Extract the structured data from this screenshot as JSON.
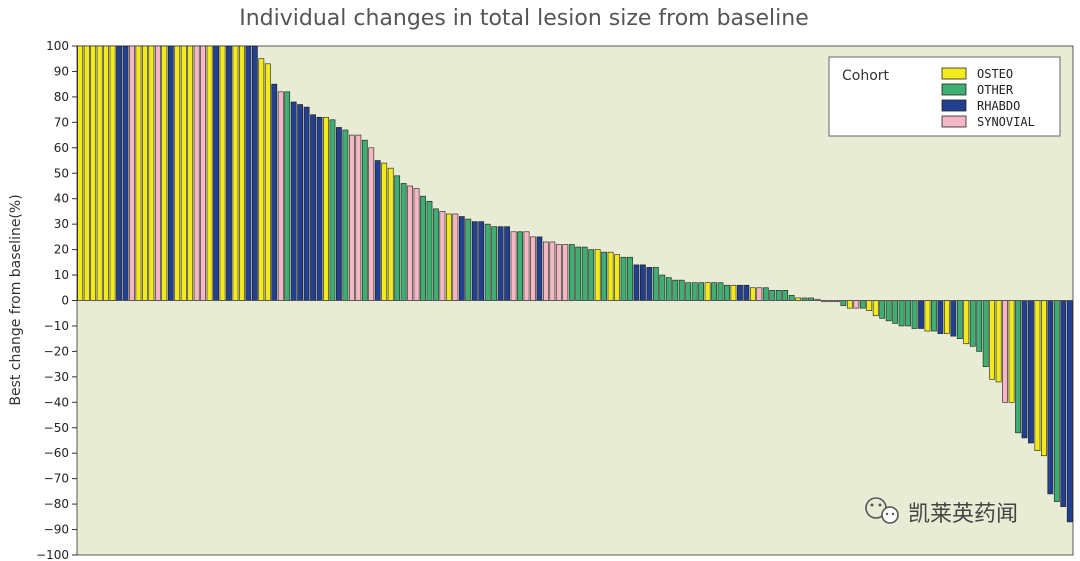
{
  "chart_data": {
    "type": "bar",
    "title": "Individual changes in total lesion size from baseline",
    "ylabel": "Best change from baseline(%)",
    "ylim": [
      -100,
      100
    ],
    "y_ticks": [
      100,
      90,
      80,
      70,
      60,
      50,
      40,
      30,
      20,
      10,
      0,
      -10,
      -20,
      -30,
      -40,
      -50,
      -60,
      -70,
      -80,
      -90,
      -100
    ],
    "legend": {
      "title": "Cohort",
      "position": "top-right",
      "entries": [
        {
          "name": "OSTEO",
          "color": "#f2ea1c"
        },
        {
          "name": "OTHER",
          "color": "#3fae72"
        },
        {
          "name": "RHABDO",
          "color": "#22408f"
        },
        {
          "name": "SYNOVIAL",
          "color": "#f5b7c6"
        }
      ]
    },
    "colors": {
      "plot_background": "#e9ecd4",
      "OSTEO": "#f2ea1c",
      "OTHER": "#3fae72",
      "RHABDO": "#22408f",
      "SYNOVIAL": "#f5b7c6"
    },
    "bars": [
      {
        "cohort": "OSTEO",
        "value": 100
      },
      {
        "cohort": "OSTEO",
        "value": 100
      },
      {
        "cohort": "OSTEO",
        "value": 100
      },
      {
        "cohort": "OSTEO",
        "value": 100
      },
      {
        "cohort": "OSTEO",
        "value": 100
      },
      {
        "cohort": "OSTEO",
        "value": 100
      },
      {
        "cohort": "RHABDO",
        "value": 100
      },
      {
        "cohort": "RHABDO",
        "value": 100
      },
      {
        "cohort": "SYNOVIAL",
        "value": 100
      },
      {
        "cohort": "OSTEO",
        "value": 100
      },
      {
        "cohort": "OSTEO",
        "value": 100
      },
      {
        "cohort": "OSTEO",
        "value": 100
      },
      {
        "cohort": "SYNOVIAL",
        "value": 100
      },
      {
        "cohort": "OSTEO",
        "value": 100
      },
      {
        "cohort": "RHABDO",
        "value": 100
      },
      {
        "cohort": "OSTEO",
        "value": 100
      },
      {
        "cohort": "OSTEO",
        "value": 100
      },
      {
        "cohort": "OSTEO",
        "value": 100
      },
      {
        "cohort": "SYNOVIAL",
        "value": 100
      },
      {
        "cohort": "SYNOVIAL",
        "value": 100
      },
      {
        "cohort": "OSTEO",
        "value": 100
      },
      {
        "cohort": "RHABDO",
        "value": 100
      },
      {
        "cohort": "OSTEO",
        "value": 100
      },
      {
        "cohort": "RHABDO",
        "value": 100
      },
      {
        "cohort": "OSTEO",
        "value": 100
      },
      {
        "cohort": "OSTEO",
        "value": 100
      },
      {
        "cohort": "RHABDO",
        "value": 100
      },
      {
        "cohort": "RHABDO",
        "value": 100
      },
      {
        "cohort": "OSTEO",
        "value": 95
      },
      {
        "cohort": "OSTEO",
        "value": 93
      },
      {
        "cohort": "RHABDO",
        "value": 85
      },
      {
        "cohort": "SYNOVIAL",
        "value": 82
      },
      {
        "cohort": "OTHER",
        "value": 82
      },
      {
        "cohort": "RHABDO",
        "value": 78
      },
      {
        "cohort": "RHABDO",
        "value": 77
      },
      {
        "cohort": "RHABDO",
        "value": 76
      },
      {
        "cohort": "RHABDO",
        "value": 73
      },
      {
        "cohort": "RHABDO",
        "value": 72
      },
      {
        "cohort": "OSTEO",
        "value": 72
      },
      {
        "cohort": "OTHER",
        "value": 71
      },
      {
        "cohort": "RHABDO",
        "value": 68
      },
      {
        "cohort": "OTHER",
        "value": 67
      },
      {
        "cohort": "SYNOVIAL",
        "value": 65
      },
      {
        "cohort": "SYNOVIAL",
        "value": 65
      },
      {
        "cohort": "OTHER",
        "value": 63
      },
      {
        "cohort": "SYNOVIAL",
        "value": 60
      },
      {
        "cohort": "RHABDO",
        "value": 55
      },
      {
        "cohort": "OSTEO",
        "value": 54
      },
      {
        "cohort": "OSTEO",
        "value": 52
      },
      {
        "cohort": "OTHER",
        "value": 49
      },
      {
        "cohort": "OTHER",
        "value": 46
      },
      {
        "cohort": "SYNOVIAL",
        "value": 45
      },
      {
        "cohort": "SYNOVIAL",
        "value": 44
      },
      {
        "cohort": "OTHER",
        "value": 41
      },
      {
        "cohort": "OTHER",
        "value": 39
      },
      {
        "cohort": "OTHER",
        "value": 36
      },
      {
        "cohort": "SYNOVIAL",
        "value": 35
      },
      {
        "cohort": "OSTEO",
        "value": 34
      },
      {
        "cohort": "SYNOVIAL",
        "value": 34
      },
      {
        "cohort": "RHABDO",
        "value": 33
      },
      {
        "cohort": "OTHER",
        "value": 32
      },
      {
        "cohort": "RHABDO",
        "value": 31
      },
      {
        "cohort": "RHABDO",
        "value": 31
      },
      {
        "cohort": "OTHER",
        "value": 30
      },
      {
        "cohort": "OTHER",
        "value": 29
      },
      {
        "cohort": "RHABDO",
        "value": 29
      },
      {
        "cohort": "RHABDO",
        "value": 29
      },
      {
        "cohort": "SYNOVIAL",
        "value": 27
      },
      {
        "cohort": "OTHER",
        "value": 27
      },
      {
        "cohort": "SYNOVIAL",
        "value": 27
      },
      {
        "cohort": "SYNOVIAL",
        "value": 25
      },
      {
        "cohort": "RHABDO",
        "value": 25
      },
      {
        "cohort": "SYNOVIAL",
        "value": 23
      },
      {
        "cohort": "SYNOVIAL",
        "value": 23
      },
      {
        "cohort": "SYNOVIAL",
        "value": 22
      },
      {
        "cohort": "SYNOVIAL",
        "value": 22
      },
      {
        "cohort": "OTHER",
        "value": 22
      },
      {
        "cohort": "OTHER",
        "value": 21
      },
      {
        "cohort": "OTHER",
        "value": 21
      },
      {
        "cohort": "OTHER",
        "value": 20
      },
      {
        "cohort": "OSTEO",
        "value": 20
      },
      {
        "cohort": "OTHER",
        "value": 19
      },
      {
        "cohort": "OSTEO",
        "value": 19
      },
      {
        "cohort": "OSTEO",
        "value": 18
      },
      {
        "cohort": "OTHER",
        "value": 17
      },
      {
        "cohort": "OTHER",
        "value": 17
      },
      {
        "cohort": "RHABDO",
        "value": 14
      },
      {
        "cohort": "RHABDO",
        "value": 14
      },
      {
        "cohort": "RHABDO",
        "value": 13
      },
      {
        "cohort": "OTHER",
        "value": 13
      },
      {
        "cohort": "OTHER",
        "value": 10
      },
      {
        "cohort": "OTHER",
        "value": 9
      },
      {
        "cohort": "OTHER",
        "value": 8
      },
      {
        "cohort": "OTHER",
        "value": 8
      },
      {
        "cohort": "OTHER",
        "value": 7
      },
      {
        "cohort": "OTHER",
        "value": 7
      },
      {
        "cohort": "OTHER",
        "value": 7
      },
      {
        "cohort": "OSTEO",
        "value": 7
      },
      {
        "cohort": "OTHER",
        "value": 7
      },
      {
        "cohort": "OTHER",
        "value": 7
      },
      {
        "cohort": "OTHER",
        "value": 6
      },
      {
        "cohort": "OSTEO",
        "value": 6
      },
      {
        "cohort": "RHABDO",
        "value": 6
      },
      {
        "cohort": "RHABDO",
        "value": 6
      },
      {
        "cohort": "OSTEO",
        "value": 5
      },
      {
        "cohort": "SYNOVIAL",
        "value": 5
      },
      {
        "cohort": "OTHER",
        "value": 5
      },
      {
        "cohort": "OTHER",
        "value": 4
      },
      {
        "cohort": "OTHER",
        "value": 4
      },
      {
        "cohort": "OTHER",
        "value": 4
      },
      {
        "cohort": "OTHER",
        "value": 2
      },
      {
        "cohort": "OSTEO",
        "value": 1
      },
      {
        "cohort": "OTHER",
        "value": 1
      },
      {
        "cohort": "OTHER",
        "value": 1
      },
      {
        "cohort": "SYNOVIAL",
        "value": 0.5
      },
      {
        "cohort": "SYNOVIAL",
        "value": -0.5
      },
      {
        "cohort": "SYNOVIAL",
        "value": -0.5
      },
      {
        "cohort": "SYNOVIAL",
        "value": -0.5
      },
      {
        "cohort": "OTHER",
        "value": -2
      },
      {
        "cohort": "OSTEO",
        "value": -3
      },
      {
        "cohort": "SYNOVIAL",
        "value": -3
      },
      {
        "cohort": "OTHER",
        "value": -3
      },
      {
        "cohort": "OSTEO",
        "value": -4
      },
      {
        "cohort": "OSTEO",
        "value": -6
      },
      {
        "cohort": "OTHER",
        "value": -7
      },
      {
        "cohort": "OTHER",
        "value": -8
      },
      {
        "cohort": "OTHER",
        "value": -9
      },
      {
        "cohort": "OTHER",
        "value": -10
      },
      {
        "cohort": "OTHER",
        "value": -10
      },
      {
        "cohort": "OTHER",
        "value": -11
      },
      {
        "cohort": "RHABDO",
        "value": -11
      },
      {
        "cohort": "OSTEO",
        "value": -12
      },
      {
        "cohort": "OTHER",
        "value": -12
      },
      {
        "cohort": "RHABDO",
        "value": -13
      },
      {
        "cohort": "OSTEO",
        "value": -13
      },
      {
        "cohort": "RHABDO",
        "value": -14
      },
      {
        "cohort": "OTHER",
        "value": -15
      },
      {
        "cohort": "OSTEO",
        "value": -17
      },
      {
        "cohort": "OTHER",
        "value": -18
      },
      {
        "cohort": "OTHER",
        "value": -20
      },
      {
        "cohort": "OTHER",
        "value": -26
      },
      {
        "cohort": "OSTEO",
        "value": -31
      },
      {
        "cohort": "OSTEO",
        "value": -32
      },
      {
        "cohort": "SYNOVIAL",
        "value": -40
      },
      {
        "cohort": "OSTEO",
        "value": -40
      },
      {
        "cohort": "OTHER",
        "value": -52
      },
      {
        "cohort": "RHABDO",
        "value": -54
      },
      {
        "cohort": "RHABDO",
        "value": -56
      },
      {
        "cohort": "OSTEO",
        "value": -59
      },
      {
        "cohort": "OSTEO",
        "value": -61
      },
      {
        "cohort": "RHABDO",
        "value": -76
      },
      {
        "cohort": "OTHER",
        "value": -79
      },
      {
        "cohort": "RHABDO",
        "value": -81
      },
      {
        "cohort": "RHABDO",
        "value": -87
      }
    ]
  },
  "watermark": {
    "text": "凯莱英药闻",
    "icon": "wechat-icon"
  }
}
